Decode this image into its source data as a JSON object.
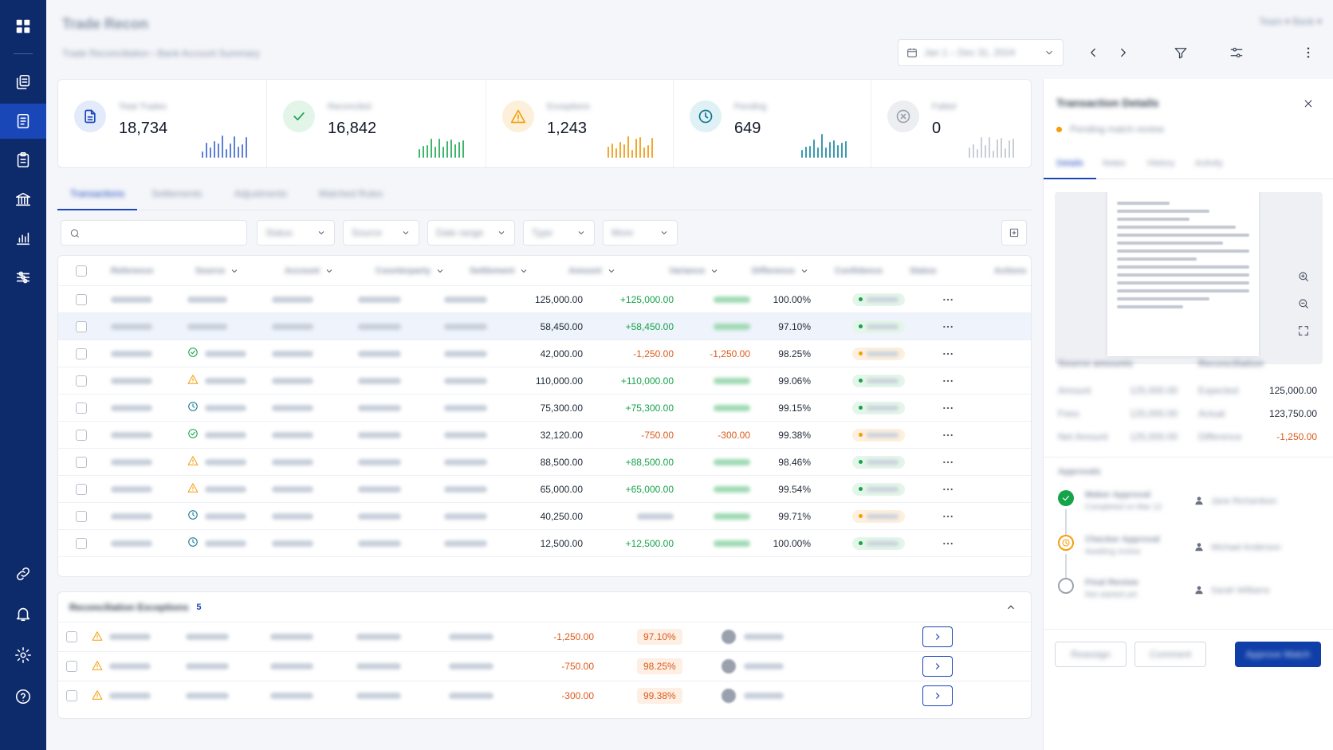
{
  "header": {
    "title": "Trade Recon",
    "breadcrumb": "Trade Reconciliation  ›  Bank Account Summary",
    "top_right": "Team ▾  Bank ▾",
    "date_range": "Jan 1 – Dec 31, 2024"
  },
  "stats": [
    {
      "label": "Total Trades",
      "value": "18,734",
      "color": "#1a47b8",
      "icon": "document-icon"
    },
    {
      "label": "Reconciled",
      "value": "16,842",
      "color": "#16a34a",
      "icon": "check-icon"
    },
    {
      "label": "Exceptions",
      "value": "1,243",
      "color": "#f59e0b",
      "icon": "warning-icon"
    },
    {
      "label": "Pending",
      "value": "649",
      "color": "#0e7490",
      "icon": "clock-icon"
    },
    {
      "label": "Failed",
      "value": "0",
      "color": "#9ca3af",
      "icon": "x-circle-icon"
    }
  ],
  "tabs": [
    {
      "label": "Transactions"
    },
    {
      "label": "Settlements"
    },
    {
      "label": "Adjustments"
    },
    {
      "label": "Matched Rules"
    }
  ],
  "filters": {
    "search_placeholder": "",
    "selects": [
      "Status",
      "Source",
      "Date range",
      "Type",
      "More"
    ]
  },
  "table": {
    "columns": [
      "Reference",
      "Source",
      "Account",
      "Counterparty",
      "Settlement",
      "Amount",
      "Variance",
      "Difference",
      "Confidence",
      "Status",
      "Actions"
    ],
    "rows": [
      {
        "amount": "125,000.00",
        "variance": "+125,000.00",
        "vtype": "pos",
        "diff": "",
        "confidence": "100.00%",
        "status": "green",
        "icon": ""
      },
      {
        "amount": "58,450.00",
        "variance": "+58,450.00",
        "vtype": "pos",
        "diff": "",
        "confidence": "97.10%",
        "status": "green",
        "icon": ""
      },
      {
        "amount": "42,000.00",
        "variance": "-1,250.00",
        "vtype": "neg",
        "diff": "-1,250.00",
        "confidence": "98.25%",
        "status": "orange",
        "icon": "check"
      },
      {
        "amount": "110,000.00",
        "variance": "+110,000.00",
        "vtype": "pos",
        "diff": "",
        "confidence": "99.06%",
        "status": "green",
        "icon": "warning"
      },
      {
        "amount": "75,300.00",
        "variance": "+75,300.00",
        "vtype": "pos",
        "diff": "",
        "confidence": "99.15%",
        "status": "green",
        "icon": "clock"
      },
      {
        "amount": "32,120.00",
        "variance": "-750.00",
        "vtype": "neg",
        "diff": "-300.00",
        "confidence": "99.38%",
        "status": "orange",
        "icon": "check"
      },
      {
        "amount": "88,500.00",
        "variance": "+88,500.00",
        "vtype": "pos",
        "diff": "",
        "confidence": "98.46%",
        "status": "green",
        "icon": "warning"
      },
      {
        "amount": "65,000.00",
        "variance": "+65,000.00",
        "vtype": "pos",
        "diff": "",
        "confidence": "99.54%",
        "status": "green",
        "icon": "warning"
      },
      {
        "amount": "40,250.00",
        "variance": "",
        "vtype": "none",
        "diff": "",
        "confidence": "99.71%",
        "status": "orange",
        "icon": "clock"
      },
      {
        "amount": "12,500.00",
        "variance": "+12,500.00",
        "vtype": "pos",
        "diff": "",
        "confidence": "100.00%",
        "status": "green",
        "icon": "clock"
      }
    ]
  },
  "exceptions": {
    "title": "Reconciliation Exceptions",
    "count": "5",
    "rows": [
      {
        "amount": "-1,250.00",
        "pct": "97.10%"
      },
      {
        "amount": "-750.00",
        "pct": "98.25%"
      },
      {
        "amount": "-300.00",
        "pct": "99.38%"
      }
    ]
  },
  "panel": {
    "title": "Transaction Details",
    "subtitle": "Pending match review",
    "tabs": [
      "Details",
      "Notes",
      "History",
      "Activity"
    ],
    "kv_left": [
      {
        "k": "Amount",
        "v": "125,000.00"
      },
      {
        "k": "Fees",
        "v": "125,000.00"
      },
      {
        "k": "Net Amount",
        "v": "125,000.00"
      }
    ],
    "kv_right": [
      {
        "k": "Expected",
        "v": "125,000.00"
      },
      {
        "k": "Actual",
        "v": "123,750.00"
      },
      {
        "k": "Difference",
        "v": "-1,250.00"
      }
    ],
    "section_left": "Source amounts",
    "section_right": "Reconciliation",
    "approvals_title": "Approvals",
    "approvals": [
      {
        "name": "Maker Approval",
        "meta": "Completed on Mar 12",
        "person": "Jane Richardson",
        "state": "done"
      },
      {
        "name": "Checker Approval",
        "meta": "Awaiting review",
        "person": "Michael Anderson",
        "state": "pending"
      },
      {
        "name": "Final Review",
        "meta": "Not started yet",
        "person": "Sarah Williams",
        "state": "todo"
      }
    ],
    "buttons": {
      "secondary1": "Reassign",
      "secondary2": "Comment",
      "primary": "Approve Match"
    }
  }
}
